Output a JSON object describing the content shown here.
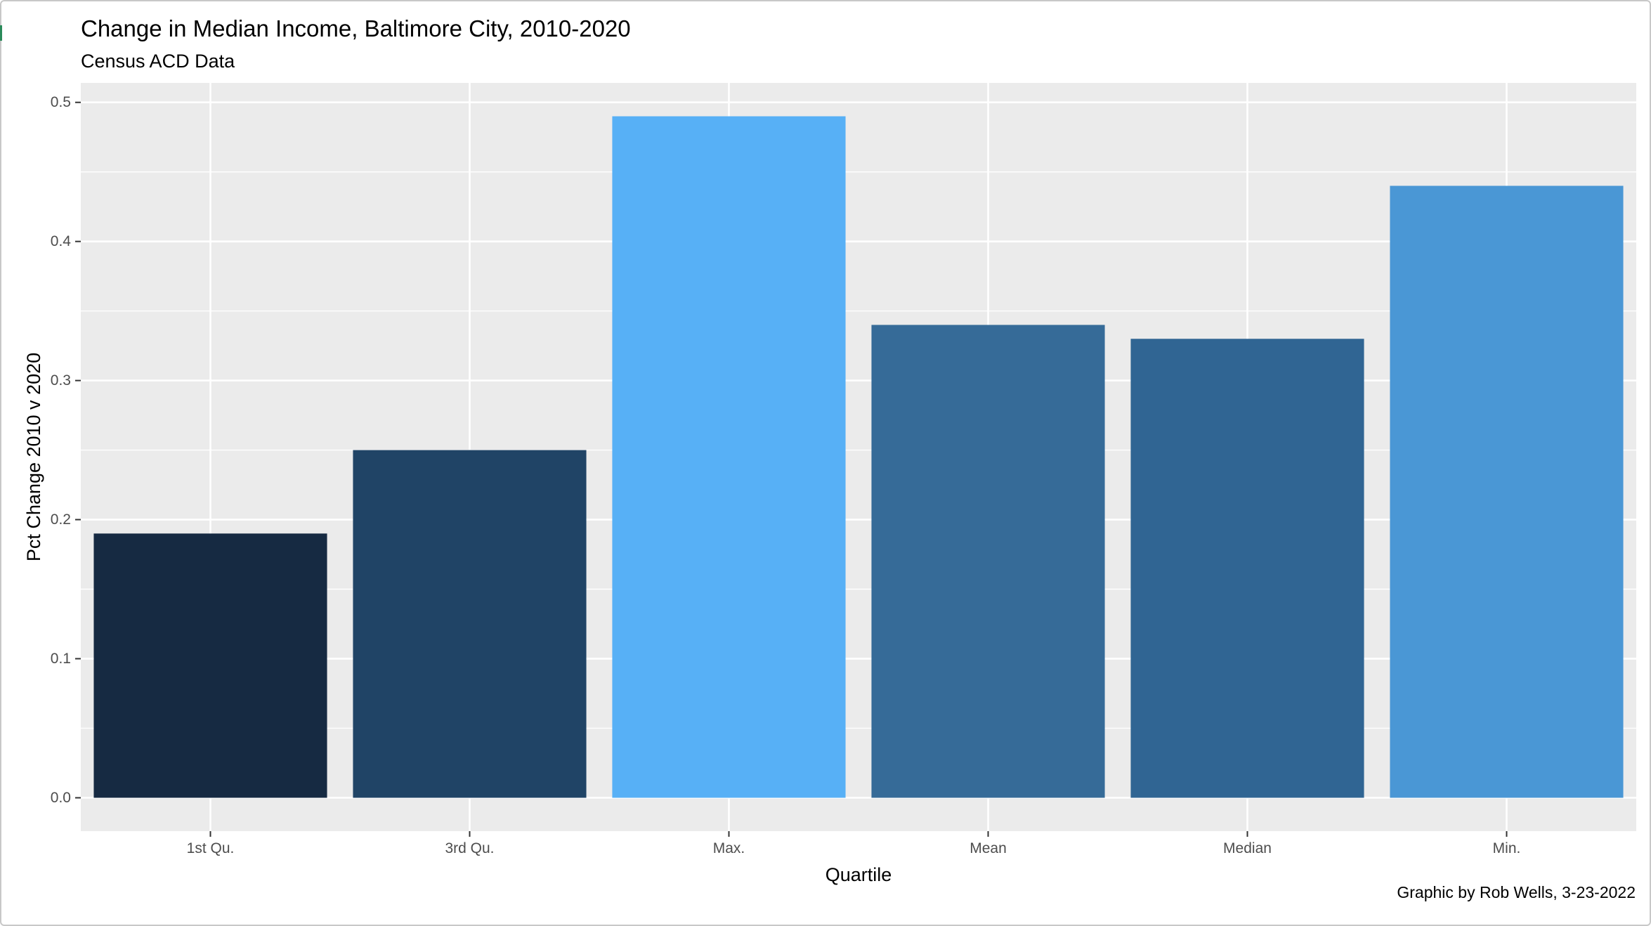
{
  "chart_data": {
    "type": "bar",
    "title": "Change in Median Income, Baltimore City, 2010-2020",
    "subtitle": "Census ACD Data",
    "caption": "Graphic by Rob Wells, 3-23-2022",
    "xlabel": "Quartile",
    "ylabel": "Pct Change 2010 v 2020",
    "categories": [
      "1st Qu.",
      "3rd Qu.",
      "Max.",
      "Mean",
      "Median",
      "Min."
    ],
    "values": [
      0.19,
      0.25,
      0.49,
      0.34,
      0.33,
      0.44
    ],
    "colors": [
      "#162a42",
      "#204466",
      "#57b0f6",
      "#366b98",
      "#306593",
      "#4a97d5"
    ],
    "ylim": [
      -0.024,
      0.514
    ],
    "yticks": [
      "0.0",
      "0.1",
      "0.2",
      "0.3",
      "0.4",
      "0.5"
    ],
    "grid": true,
    "legend": "none",
    "panel_background": "#ebebeb",
    "grid_color": "#ffffff"
  }
}
